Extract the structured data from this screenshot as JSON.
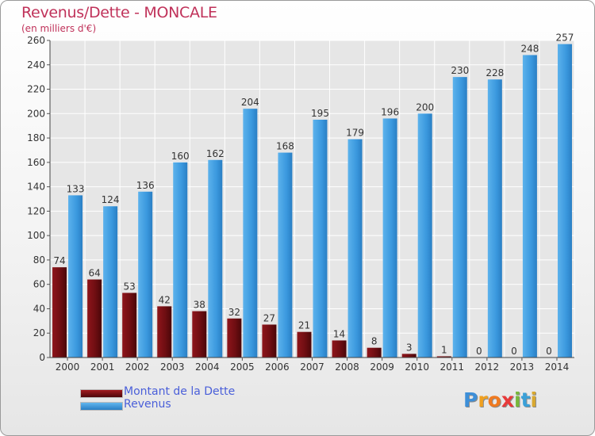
{
  "header": {
    "title": "Revenus/Dette - MONCALE",
    "subtitle": "(en milliers d'€)"
  },
  "colors": {
    "title": "#c0325a",
    "dette": "#7a0f14",
    "revenus": "#3a98de",
    "legend_text": "#4a5fd9"
  },
  "chart_data": {
    "type": "bar",
    "categories": [
      "2000",
      "2001",
      "2002",
      "2003",
      "2004",
      "2005",
      "2006",
      "2007",
      "2008",
      "2009",
      "2010",
      "2011",
      "2012",
      "2013",
      "2014"
    ],
    "series": [
      {
        "name": "Montant de la Dette",
        "values": [
          74,
          64,
          53,
          42,
          38,
          32,
          27,
          21,
          14,
          8,
          3,
          1,
          0,
          0,
          0
        ]
      },
      {
        "name": "Revenus",
        "values": [
          133,
          124,
          136,
          160,
          162,
          204,
          168,
          195,
          179,
          196,
          200,
          230,
          228,
          248,
          257
        ]
      }
    ],
    "title": "Revenus/Dette - MONCALE",
    "ylabel": "(en milliers d'€)",
    "ylim": [
      0,
      260
    ],
    "yticks": [
      0,
      20,
      40,
      60,
      80,
      100,
      120,
      140,
      160,
      180,
      200,
      220,
      240,
      260
    ],
    "grid": true,
    "legend_position": "bottom-left"
  },
  "legend": {
    "items": [
      {
        "label": "Montant de la Dette"
      },
      {
        "label": "Revenus"
      }
    ]
  },
  "logo": {
    "letters": [
      "P",
      "r",
      "o",
      "x",
      "i",
      "t",
      "i"
    ]
  }
}
